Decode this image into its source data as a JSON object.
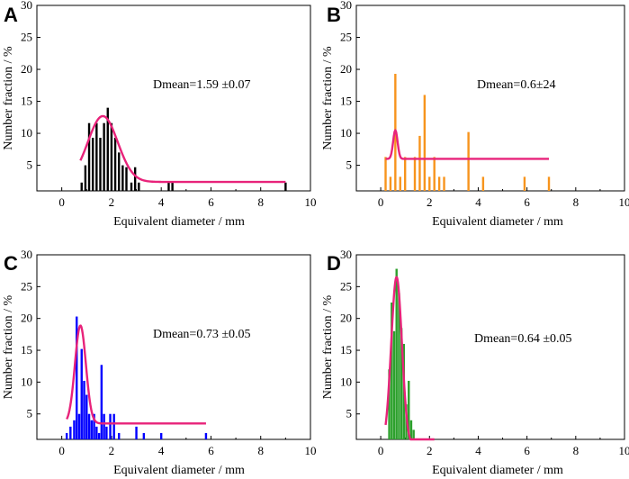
{
  "chart_data": [
    {
      "type": "bar",
      "panel": "A",
      "color": "#000000",
      "fit_color": "#e8237a",
      "annotation": "Dmean=1.59 ±0.07",
      "xlabel": "Equivalent diameter / mm",
      "ylabel": "Number fraction / %",
      "xlim": [
        -1,
        10
      ],
      "ylim": [
        1,
        30
      ],
      "xticks": [
        0,
        2,
        4,
        6,
        8,
        10
      ],
      "yticks": [
        5,
        10,
        15,
        20,
        25,
        30
      ],
      "bars": [
        {
          "x": 0.8,
          "y": 2.3
        },
        {
          "x": 0.95,
          "y": 5.0
        },
        {
          "x": 1.1,
          "y": 11.6
        },
        {
          "x": 1.25,
          "y": 9.3
        },
        {
          "x": 1.4,
          "y": 11.6
        },
        {
          "x": 1.55,
          "y": 9.3
        },
        {
          "x": 1.7,
          "y": 11.6
        },
        {
          "x": 1.85,
          "y": 14.0
        },
        {
          "x": 2.0,
          "y": 11.6
        },
        {
          "x": 2.15,
          "y": 9.3
        },
        {
          "x": 2.3,
          "y": 7.0
        },
        {
          "x": 2.45,
          "y": 5.0
        },
        {
          "x": 2.6,
          "y": 4.7
        },
        {
          "x": 2.8,
          "y": 2.3
        },
        {
          "x": 2.95,
          "y": 4.7
        },
        {
          "x": 3.1,
          "y": 2.3
        },
        {
          "x": 4.3,
          "y": 2.3
        },
        {
          "x": 4.45,
          "y": 2.3
        },
        {
          "x": 9.0,
          "y": 2.3
        }
      ],
      "fit": {
        "type": "gaussian",
        "xmin": 0.75,
        "xmax": 9.0,
        "baseline": 2.4,
        "amplitude": 10.3,
        "center": 1.65,
        "sigma": 0.6
      }
    },
    {
      "type": "bar",
      "panel": "B",
      "color": "#f7941d",
      "fit_color": "#e8237a",
      "annotation": "Dmean=0.6±24",
      "xlabel": "Equivalent diameter / mm",
      "ylabel": "Number fraction / %",
      "xlim": [
        -1,
        10
      ],
      "ylim": [
        1,
        30
      ],
      "xticks": [
        0,
        2,
        4,
        6,
        8,
        10
      ],
      "yticks": [
        5,
        10,
        15,
        20,
        25,
        30
      ],
      "bars": [
        {
          "x": 0.2,
          "y": 6.3
        },
        {
          "x": 0.4,
          "y": 3.2
        },
        {
          "x": 0.6,
          "y": 19.3
        },
        {
          "x": 0.8,
          "y": 3.2
        },
        {
          "x": 1.0,
          "y": 6.3
        },
        {
          "x": 1.4,
          "y": 6.3
        },
        {
          "x": 1.6,
          "y": 9.6
        },
        {
          "x": 1.8,
          "y": 16.0
        },
        {
          "x": 2.0,
          "y": 3.2
        },
        {
          "x": 2.2,
          "y": 6.3
        },
        {
          "x": 2.4,
          "y": 3.2
        },
        {
          "x": 2.6,
          "y": 3.2
        },
        {
          "x": 3.6,
          "y": 10.2
        },
        {
          "x": 4.2,
          "y": 3.2
        },
        {
          "x": 5.9,
          "y": 3.2
        },
        {
          "x": 6.9,
          "y": 3.2
        }
      ],
      "fit": {
        "type": "gaussian",
        "xmin": 0.2,
        "xmax": 6.9,
        "baseline": 6.0,
        "amplitude": 4.5,
        "center": 0.6,
        "sigma": 0.09
      }
    },
    {
      "type": "bar",
      "panel": "C",
      "color": "#0000ff",
      "fit_color": "#e8237a",
      "annotation": "Dmean=0.73 ±0.05",
      "xlabel": "Equivalent diameter / mm",
      "ylabel": "Number fraction / %",
      "xlim": [
        -1,
        10
      ],
      "ylim": [
        1,
        30
      ],
      "xticks": [
        0,
        2,
        4,
        6,
        8,
        10
      ],
      "yticks": [
        5,
        10,
        15,
        20,
        25,
        30
      ],
      "bars": [
        {
          "x": 0.2,
          "y": 2.0
        },
        {
          "x": 0.35,
          "y": 3.0
        },
        {
          "x": 0.5,
          "y": 4.0
        },
        {
          "x": 0.6,
          "y": 20.3
        },
        {
          "x": 0.7,
          "y": 5.0
        },
        {
          "x": 0.8,
          "y": 15.2
        },
        {
          "x": 0.9,
          "y": 10.2
        },
        {
          "x": 1.0,
          "y": 8.0
        },
        {
          "x": 1.1,
          "y": 5.0
        },
        {
          "x": 1.2,
          "y": 4.0
        },
        {
          "x": 1.3,
          "y": 5.0
        },
        {
          "x": 1.4,
          "y": 3.0
        },
        {
          "x": 1.5,
          "y": 2.0
        },
        {
          "x": 1.6,
          "y": 12.7
        },
        {
          "x": 1.7,
          "y": 5.0
        },
        {
          "x": 1.8,
          "y": 3.0
        },
        {
          "x": 1.95,
          "y": 5.0
        },
        {
          "x": 2.1,
          "y": 5.0
        },
        {
          "x": 2.3,
          "y": 2.0
        },
        {
          "x": 3.0,
          "y": 3.0
        },
        {
          "x": 3.3,
          "y": 2.0
        },
        {
          "x": 4.0,
          "y": 2.0
        },
        {
          "x": 5.8,
          "y": 2.0
        }
      ],
      "fit": {
        "type": "gaussian",
        "xmin": 0.2,
        "xmax": 5.8,
        "baseline": 3.5,
        "amplitude": 15.4,
        "center": 0.75,
        "sigma": 0.22
      }
    },
    {
      "type": "bar",
      "panel": "D",
      "color": "#2ca02c",
      "fit_color": "#e8237a",
      "annotation": "Dmean=0.64 ±0.05",
      "xlabel": "Equivalent diameter / mm",
      "ylabel": "Number fraction / %",
      "xlim": [
        -1,
        10
      ],
      "ylim": [
        1,
        30
      ],
      "xticks": [
        0,
        2,
        4,
        6,
        8,
        10
      ],
      "yticks": [
        5,
        10,
        15,
        20,
        25,
        30
      ],
      "bars": [
        {
          "x": 0.35,
          "y": 12.0
        },
        {
          "x": 0.45,
          "y": 22.5
        },
        {
          "x": 0.55,
          "y": 18.0
        },
        {
          "x": 0.65,
          "y": 27.8
        },
        {
          "x": 0.75,
          "y": 24.0
        },
        {
          "x": 0.85,
          "y": 18.5
        },
        {
          "x": 0.95,
          "y": 16.0
        },
        {
          "x": 1.05,
          "y": 6.5
        },
        {
          "x": 1.15,
          "y": 10.2
        },
        {
          "x": 1.25,
          "y": 4.0
        },
        {
          "x": 1.35,
          "y": 2.5
        }
      ],
      "fit": {
        "type": "gaussian",
        "xmin": 0.2,
        "xmax": 2.2,
        "baseline": 0.0,
        "amplitude": 26.5,
        "center": 0.65,
        "sigma": 0.22
      }
    }
  ]
}
